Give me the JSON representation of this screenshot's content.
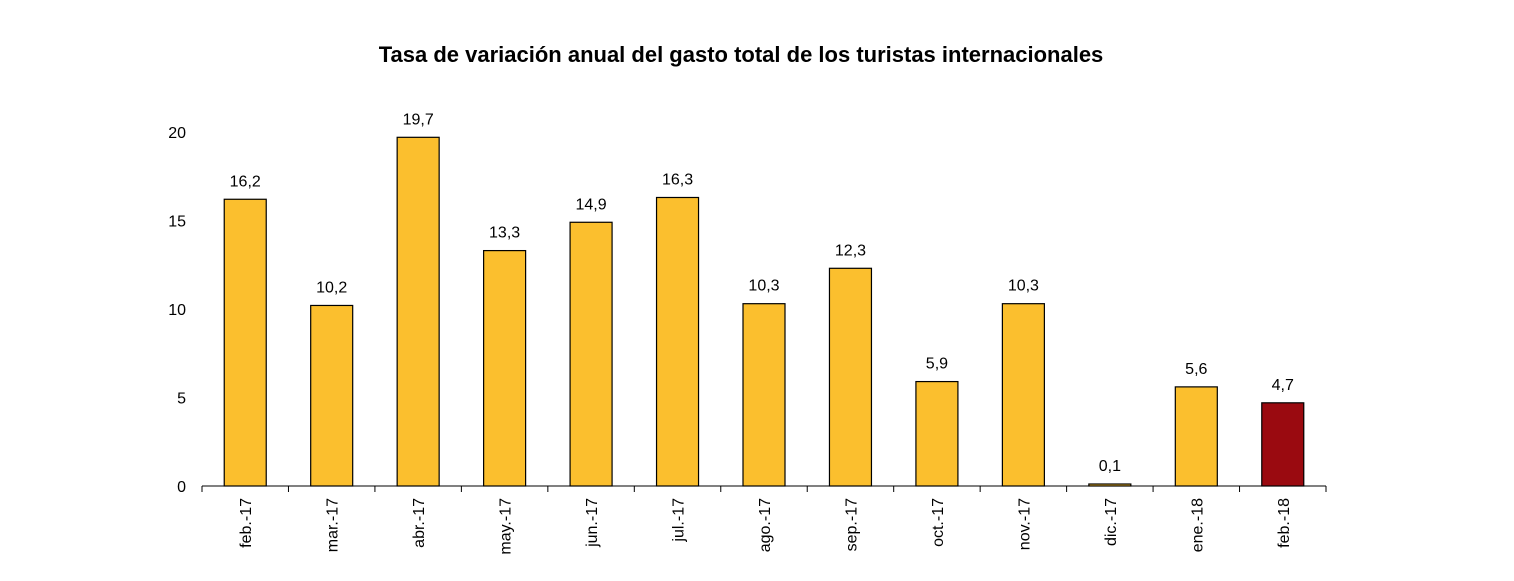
{
  "chart_data": {
    "type": "bar",
    "title": "Tasa de variación anual del gasto total de los turistas internacionales",
    "xlabel": "",
    "ylabel": "",
    "categories": [
      "feb.-17",
      "mar.-17",
      "abr.-17",
      "may.-17",
      "jun.-17",
      "jul.-17",
      "ago.-17",
      "sep.-17",
      "oct.-17",
      "nov.-17",
      "dic.-17",
      "ene.-18",
      "feb.-18"
    ],
    "values": [
      16.2,
      10.2,
      19.7,
      13.3,
      14.9,
      16.3,
      10.3,
      12.3,
      5.9,
      10.3,
      0.1,
      5.6,
      4.7
    ],
    "data_labels": [
      "16,2",
      "10,2",
      "19,7",
      "13,3",
      "14,9",
      "16,3",
      "10,3",
      "12,3",
      "5,9",
      "10,3",
      "0,1",
      "5,6",
      "4,7"
    ],
    "ylim": [
      0,
      20
    ],
    "yticks": [
      0,
      5,
      10,
      15,
      20
    ],
    "ytick_labels": [
      "0",
      "5",
      "10",
      "15",
      "20"
    ],
    "grid": false,
    "legend": "none",
    "colors": {
      "bar": "#FBBF2E",
      "highlight": "#9A0A10",
      "outline": "#000000"
    },
    "highlight_index": 12
  }
}
